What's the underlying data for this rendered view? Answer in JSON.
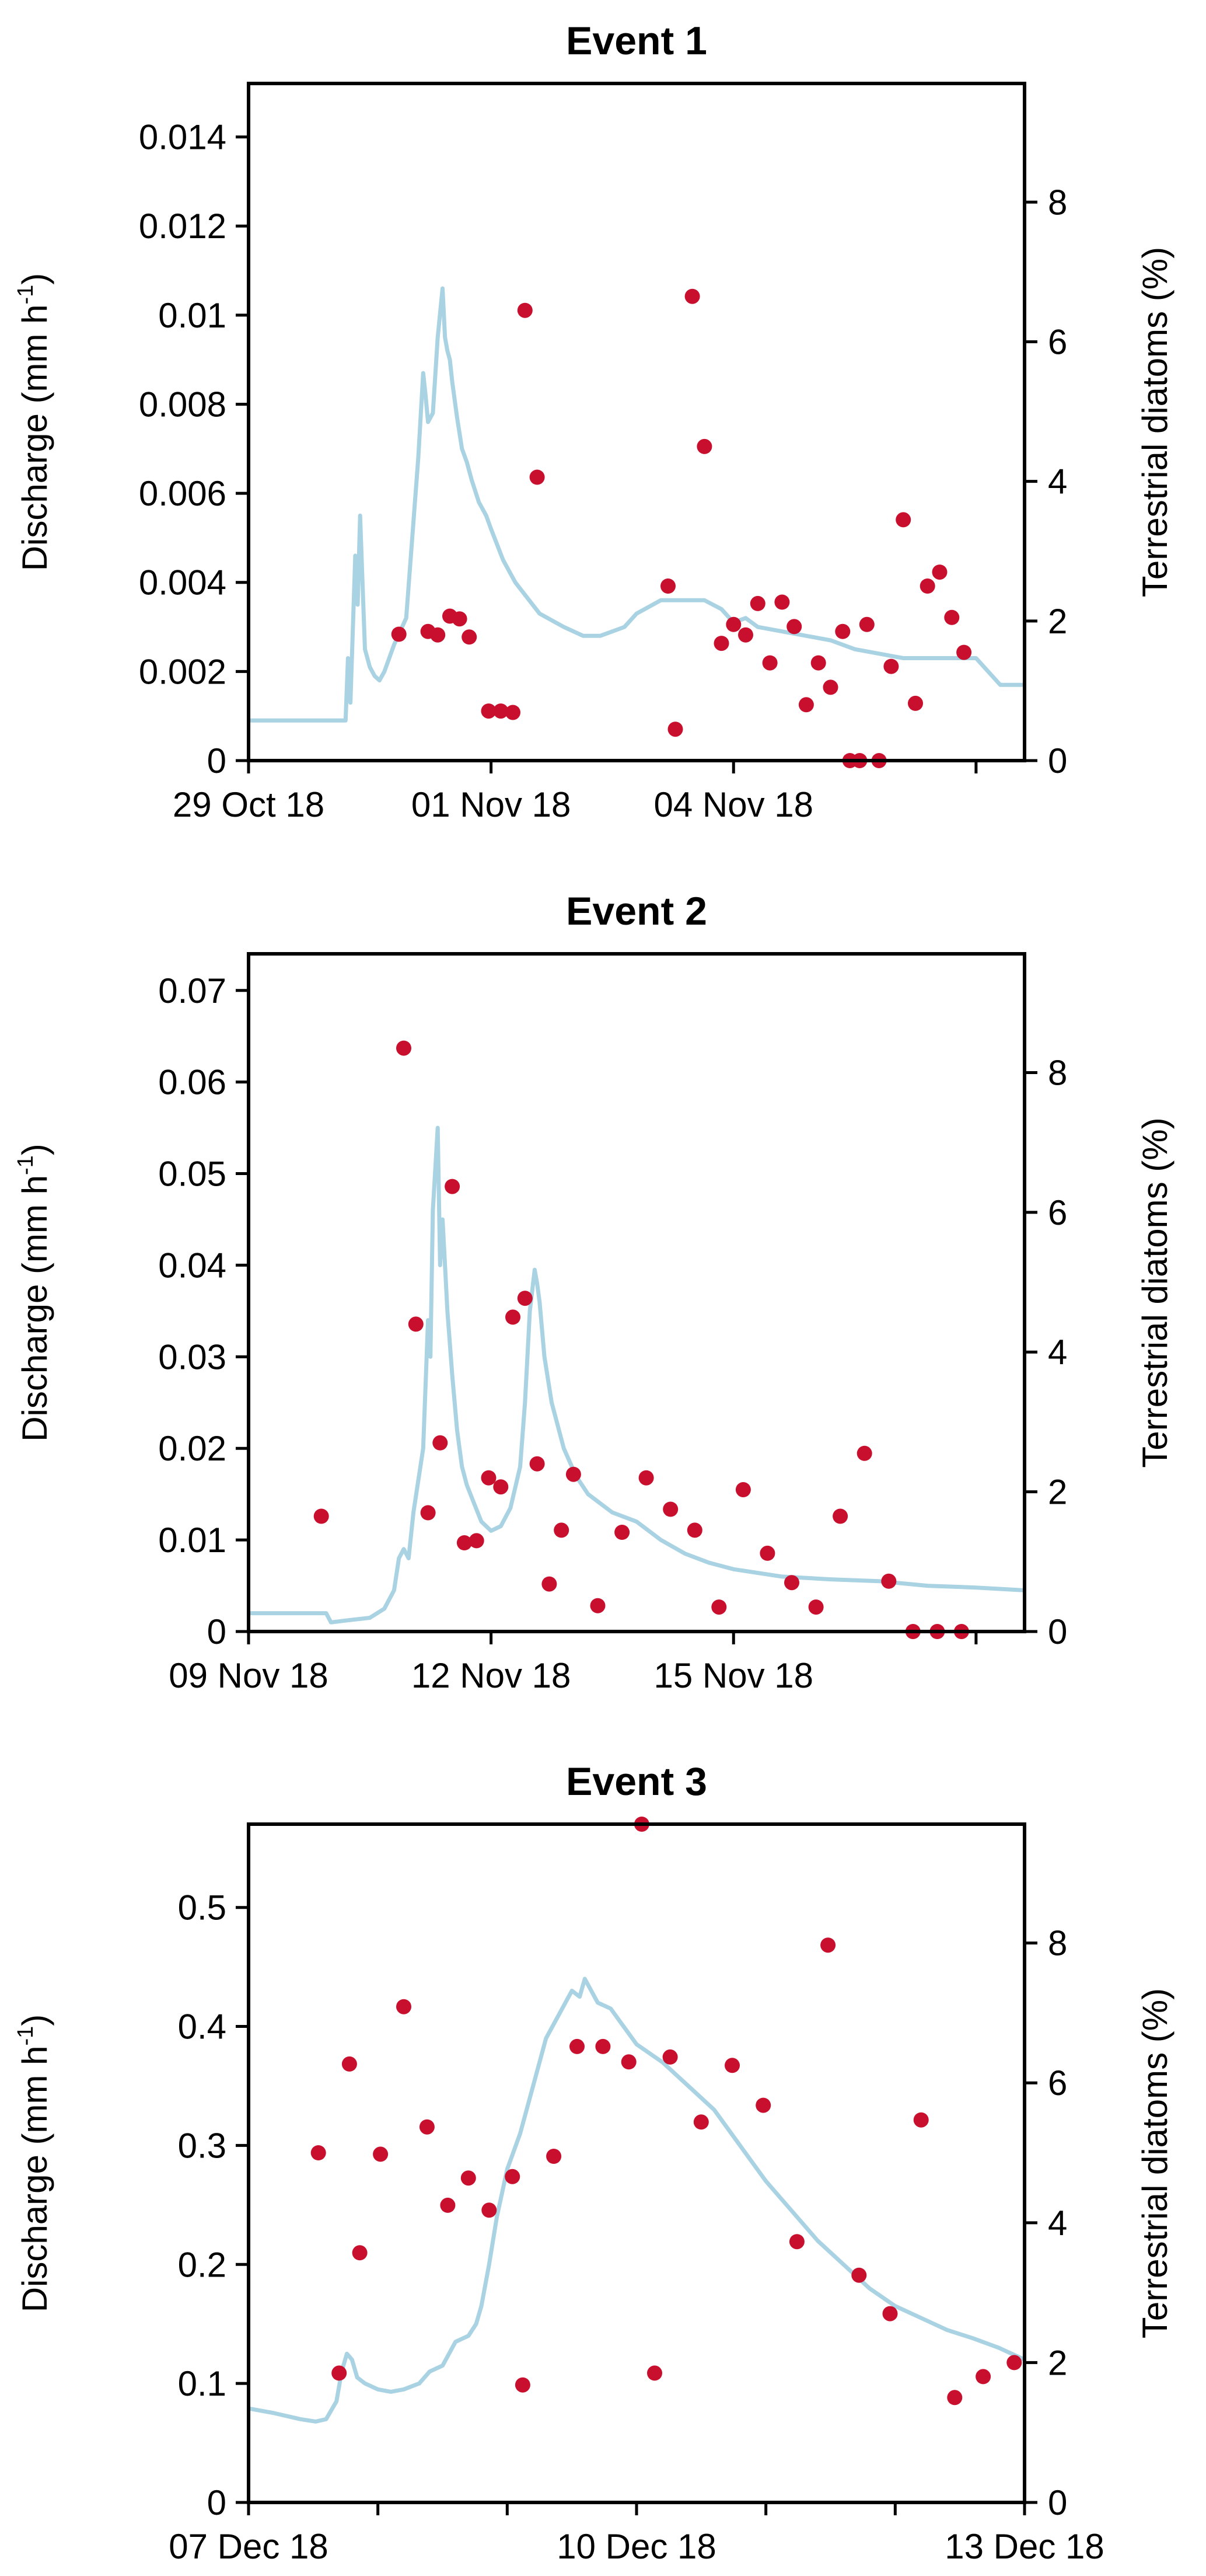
{
  "colors": {
    "discharge": "#a9d2e3",
    "diatoms": "#c8102e",
    "axis": "#000000"
  },
  "chart_data": [
    {
      "type": "line",
      "title": "Event 1",
      "ylabel": "Discharge (mm h",
      "ylabel_sup": "-1",
      "ylabel_close": ")",
      "y2label": "Terrestrial diatoms (%)",
      "xlim": [
        0,
        3.2
      ],
      "ylim": [
        0,
        0.0152
      ],
      "y2lim": [
        0,
        9.7
      ],
      "xticks": [
        0,
        1,
        2,
        3
      ],
      "xtick_labels": [
        "29 Oct 18",
        "01 Nov 18",
        "04 Nov 18"
      ],
      "xtick_label_positions": [
        0,
        1,
        2
      ],
      "yticks": [
        0,
        0.002,
        0.004,
        0.006,
        0.008,
        0.01,
        0.012,
        0.014
      ],
      "ytick_labels": [
        "0",
        "0.002",
        "0.004",
        "0.006",
        "0.008",
        "0.01",
        "0.012",
        "0.014"
      ],
      "y2ticks": [
        0,
        2,
        4,
        6,
        8
      ],
      "y2tick_labels": [
        "0",
        "2",
        "4",
        "6",
        "8"
      ],
      "series": [
        {
          "kind": "line",
          "axis": "left",
          "x": [
            0,
            0.4,
            0.41,
            0.42,
            0.44,
            0.45,
            0.46,
            0.47,
            0.48,
            0.49,
            0.5,
            0.52,
            0.54,
            0.56,
            0.58,
            0.6,
            0.65,
            0.7,
            0.72,
            0.73,
            0.74,
            0.76,
            0.78,
            0.8,
            0.81,
            0.82,
            0.83,
            0.84,
            0.86,
            0.88,
            0.9,
            0.92,
            0.95,
            0.98,
            1.0,
            1.05,
            1.1,
            1.2,
            1.3,
            1.38,
            1.45,
            1.55,
            1.6,
            1.7,
            1.8,
            1.88,
            1.95,
            2.0,
            2.05,
            2.1,
            2.2,
            2.3,
            2.4,
            2.5,
            2.6,
            2.7,
            2.8,
            3.0,
            3.1,
            3.15,
            3.2
          ],
          "y": [
            0.0009,
            0.0009,
            0.0023,
            0.0013,
            0.0046,
            0.0035,
            0.0055,
            0.004,
            0.0025,
            0.0023,
            0.0021,
            0.0019,
            0.0018,
            0.002,
            0.0023,
            0.0026,
            0.0032,
            0.0068,
            0.0087,
            0.0082,
            0.0076,
            0.0078,
            0.0095,
            0.0106,
            0.0095,
            0.0092,
            0.009,
            0.0085,
            0.0077,
            0.007,
            0.0067,
            0.0063,
            0.0058,
            0.0055,
            0.0052,
            0.0045,
            0.004,
            0.0033,
            0.003,
            0.0028,
            0.0028,
            0.003,
            0.0033,
            0.0036,
            0.0036,
            0.0036,
            0.0034,
            0.0031,
            0.0032,
            0.003,
            0.0029,
            0.0028,
            0.0027,
            0.0025,
            0.0024,
            0.0023,
            0.0023,
            0.0023,
            0.0017,
            0.0017,
            0.0017
          ]
        },
        {
          "kind": "scatter",
          "axis": "right",
          "x": [
            0.62,
            0.74,
            0.78,
            0.83,
            0.87,
            0.91,
            0.99,
            1.04,
            1.09,
            1.14,
            1.19,
            1.73,
            1.76,
            1.83,
            1.88,
            1.95,
            2.0,
            2.05,
            2.1,
            2.15,
            2.2,
            2.25,
            2.3,
            2.35,
            2.4,
            2.45,
            2.48,
            2.52,
            2.55,
            2.6,
            2.65,
            2.7,
            2.75,
            2.8,
            2.85,
            2.9,
            2.95
          ],
          "y": [
            1.81,
            1.85,
            1.8,
            2.07,
            2.03,
            1.77,
            0.71,
            0.71,
            0.69,
            6.45,
            4.06,
            2.5,
            0.45,
            6.65,
            4.5,
            1.68,
            1.95,
            1.8,
            2.25,
            1.4,
            2.27,
            1.92,
            0.8,
            1.4,
            1.05,
            1.85,
            0.0,
            0.0,
            1.95,
            0.0,
            1.35,
            3.45,
            0.82,
            2.5,
            2.7,
            2.05,
            1.55
          ]
        }
      ]
    },
    {
      "type": "line",
      "title": "Event 2",
      "ylabel": "Discharge (mm h",
      "ylabel_sup": "-1",
      "ylabel_close": ")",
      "y2label": "Terrestrial diatoms (%)",
      "xlim": [
        0,
        3.2
      ],
      "ylim": [
        0,
        0.074
      ],
      "y2lim": [
        0,
        9.7
      ],
      "xticks": [
        0,
        1,
        2,
        3
      ],
      "xtick_labels": [
        "09 Nov 18",
        "12 Nov 18",
        "15 Nov 18"
      ],
      "xtick_label_positions": [
        0,
        1,
        2
      ],
      "yticks": [
        0,
        0.01,
        0.02,
        0.03,
        0.04,
        0.05,
        0.06,
        0.07
      ],
      "ytick_labels": [
        "0",
        "0.01",
        "0.02",
        "0.03",
        "0.04",
        "0.05",
        "0.06",
        "0.07"
      ],
      "y2ticks": [
        0,
        2,
        4,
        6,
        8
      ],
      "y2tick_labels": [
        "0",
        "2",
        "4",
        "6",
        "8"
      ],
      "series": [
        {
          "kind": "line",
          "axis": "left",
          "x": [
            0,
            0.32,
            0.34,
            0.4,
            0.5,
            0.56,
            0.6,
            0.62,
            0.64,
            0.66,
            0.68,
            0.72,
            0.74,
            0.75,
            0.76,
            0.78,
            0.79,
            0.8,
            0.81,
            0.82,
            0.84,
            0.86,
            0.88,
            0.9,
            0.93,
            0.96,
            1.0,
            1.04,
            1.08,
            1.12,
            1.14,
            1.16,
            1.18,
            1.19,
            1.2,
            1.22,
            1.25,
            1.3,
            1.35,
            1.4,
            1.5,
            1.6,
            1.7,
            1.8,
            1.9,
            2.0,
            2.2,
            2.4,
            2.6,
            2.8,
            3.0,
            3.2
          ],
          "y": [
            0.002,
            0.002,
            0.001,
            0.0012,
            0.0015,
            0.0025,
            0.0045,
            0.008,
            0.009,
            0.008,
            0.013,
            0.02,
            0.034,
            0.03,
            0.046,
            0.055,
            0.04,
            0.045,
            0.04,
            0.035,
            0.028,
            0.022,
            0.018,
            0.016,
            0.014,
            0.012,
            0.011,
            0.0115,
            0.0135,
            0.018,
            0.025,
            0.035,
            0.0395,
            0.038,
            0.036,
            0.03,
            0.025,
            0.02,
            0.017,
            0.015,
            0.013,
            0.012,
            0.01,
            0.0085,
            0.0075,
            0.0068,
            0.006,
            0.0057,
            0.0055,
            0.005,
            0.0048,
            0.0045
          ]
        },
        {
          "kind": "scatter",
          "axis": "right",
          "x": [
            0.3,
            0.64,
            0.69,
            0.74,
            0.79,
            0.84,
            0.89,
            0.94,
            0.99,
            1.04,
            1.09,
            1.14,
            1.19,
            1.24,
            1.29,
            1.34,
            1.44,
            1.54,
            1.64,
            1.74,
            1.84,
            1.94,
            2.04,
            2.14,
            2.24,
            2.34,
            2.44,
            2.54,
            2.64,
            2.74,
            2.84,
            2.94
          ],
          "y": [
            1.65,
            8.35,
            4.4,
            1.7,
            2.7,
            6.37,
            1.27,
            1.3,
            2.2,
            2.07,
            4.5,
            4.77,
            2.4,
            0.68,
            1.45,
            2.25,
            0.37,
            1.42,
            2.2,
            1.75,
            1.45,
            0.35,
            2.03,
            1.12,
            0.7,
            0.35,
            1.65,
            2.55,
            0.72,
            0.0,
            0.0,
            0.0
          ]
        }
      ]
    },
    {
      "type": "line",
      "title": "Event 3",
      "ylabel": "Discharge (mm h",
      "ylabel_sup": "-1",
      "ylabel_close": ")",
      "y2label": "Terrestrial diatoms (%)",
      "xlim": [
        0,
        3.0
      ],
      "ylim": [
        0,
        0.57
      ],
      "y2lim": [
        0,
        9.7
      ],
      "xticks": [
        0,
        0.5,
        1,
        1.5,
        2,
        2.5,
        3
      ],
      "xtick_labels": [
        "07 Dec 18",
        "10 Dec 18",
        "13 Dec 18"
      ],
      "xtick_label_positions": [
        0,
        1.5,
        3
      ],
      "yticks": [
        0,
        0.1,
        0.2,
        0.3,
        0.4,
        0.5
      ],
      "ytick_labels": [
        "0",
        "0.1",
        "0.2",
        "0.3",
        "0.4",
        "0.5"
      ],
      "y2ticks": [
        0,
        2,
        4,
        6,
        8
      ],
      "y2tick_labels": [
        "0",
        "2",
        "4",
        "6",
        "8"
      ],
      "series": [
        {
          "kind": "line",
          "axis": "left",
          "x": [
            0,
            0.1,
            0.2,
            0.26,
            0.3,
            0.34,
            0.36,
            0.38,
            0.4,
            0.42,
            0.45,
            0.5,
            0.55,
            0.6,
            0.66,
            0.7,
            0.75,
            0.8,
            0.85,
            0.88,
            0.9,
            0.93,
            0.96,
            1.0,
            1.05,
            1.1,
            1.15,
            1.2,
            1.25,
            1.28,
            1.3,
            1.35,
            1.4,
            1.45,
            1.5,
            1.6,
            1.7,
            1.8,
            1.9,
            2.0,
            2.1,
            2.2,
            2.3,
            2.4,
            2.5,
            2.6,
            2.7,
            2.8,
            2.9,
            3.0
          ],
          "y": [
            0.079,
            0.075,
            0.07,
            0.068,
            0.07,
            0.085,
            0.11,
            0.125,
            0.12,
            0.105,
            0.1,
            0.095,
            0.093,
            0.095,
            0.1,
            0.11,
            0.115,
            0.135,
            0.14,
            0.15,
            0.165,
            0.2,
            0.24,
            0.28,
            0.31,
            0.35,
            0.39,
            0.41,
            0.43,
            0.425,
            0.44,
            0.42,
            0.415,
            0.4,
            0.385,
            0.37,
            0.35,
            0.33,
            0.3,
            0.27,
            0.245,
            0.22,
            0.2,
            0.18,
            0.165,
            0.155,
            0.145,
            0.138,
            0.13,
            0.12
          ]
        },
        {
          "kind": "scatter",
          "axis": "right",
          "x": [
            0.27,
            0.35,
            0.39,
            0.43,
            0.51,
            0.6,
            0.69,
            0.77,
            0.85,
            0.93,
            1.02,
            1.06,
            1.18,
            1.27,
            1.37,
            1.47,
            1.52,
            1.57,
            1.63,
            1.75,
            1.87,
            1.99,
            2.12,
            2.24,
            2.36,
            2.48,
            2.6,
            2.73,
            2.84,
            2.96
          ],
          "y": [
            5.0,
            1.85,
            6.27,
            3.57,
            4.98,
            7.09,
            5.37,
            4.25,
            4.64,
            4.18,
            4.66,
            1.68,
            4.95,
            6.52,
            6.52,
            6.3,
            9.7,
            1.85,
            6.37,
            5.44,
            6.25,
            5.68,
            3.73,
            7.97,
            3.25,
            2.7,
            5.47,
            1.5,
            1.8,
            2.0
          ]
        }
      ]
    }
  ]
}
